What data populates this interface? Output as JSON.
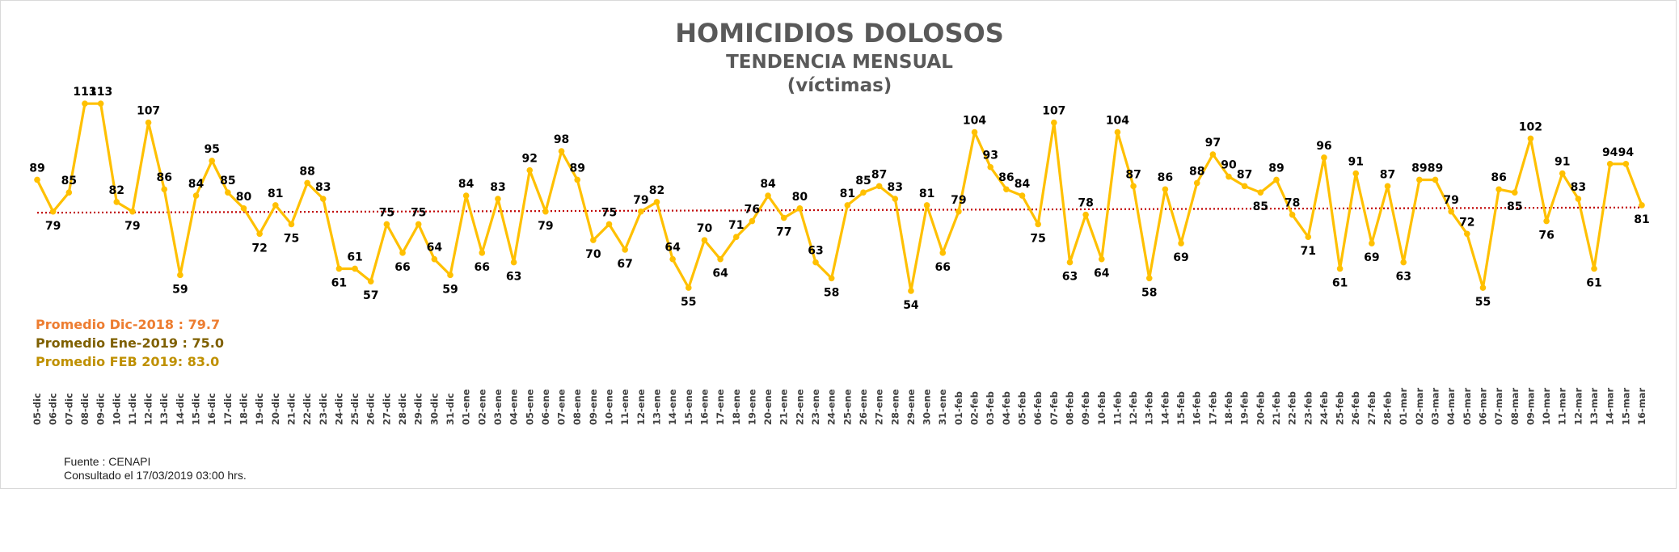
{
  "chart_data": {
    "type": "line",
    "title": "HOMICIDIOS DOLOSOS",
    "subtitle": "TENDENCIA MENSUAL",
    "unit_label": "(víctimas)",
    "categories": [
      "05-dic",
      "06-dic",
      "07-dic",
      "08-dic",
      "09-dic",
      "10-dic",
      "11-dic",
      "12-dic",
      "13-dic",
      "14-dic",
      "15-dic",
      "16-dic",
      "17-dic",
      "18-dic",
      "19-dic",
      "20-dic",
      "21-dic",
      "22-dic",
      "23-dic",
      "24-dic",
      "25-dic",
      "26-dic",
      "27-dic",
      "28-dic",
      "29-dic",
      "30-dic",
      "31-dic",
      "01-ene",
      "02-ene",
      "03-ene",
      "04-ene",
      "05-ene",
      "06-ene",
      "07-ene",
      "08-ene",
      "09-ene",
      "10-ene",
      "11-ene",
      "12-ene",
      "13-ene",
      "14-ene",
      "15-ene",
      "16-ene",
      "17-ene",
      "18-ene",
      "19-ene",
      "20-ene",
      "21-ene",
      "22-ene",
      "23-ene",
      "24-ene",
      "25-ene",
      "26-ene",
      "27-ene",
      "28-ene",
      "29-ene",
      "30-ene",
      "31-ene",
      "01-feb",
      "02-feb",
      "03-feb",
      "04-feb",
      "05-feb",
      "06-feb",
      "07-feb",
      "08-feb",
      "09-feb",
      "10-feb",
      "11-feb",
      "12-feb",
      "13-feb",
      "14-feb",
      "15-feb",
      "16-feb",
      "17-feb",
      "18-feb",
      "19-feb",
      "20-feb",
      "21-feb",
      "22-feb",
      "23-feb",
      "24-feb",
      "25-feb",
      "26-feb",
      "27-feb",
      "28-feb",
      "01-mar",
      "02-mar",
      "03-mar",
      "04-mar",
      "05-mar",
      "06-mar",
      "07-mar",
      "08-mar",
      "09-mar",
      "10-mar",
      "11-mar",
      "12-mar",
      "13-mar",
      "14-mar",
      "15-mar",
      "16-mar"
    ],
    "values": [
      89,
      79,
      85,
      113,
      113,
      82,
      79,
      107,
      86,
      59,
      84,
      95,
      85,
      80,
      72,
      81,
      75,
      88,
      83,
      61,
      61,
      57,
      75,
      66,
      75,
      64,
      59,
      84,
      66,
      83,
      63,
      92,
      79,
      98,
      89,
      70,
      75,
      67,
      79,
      82,
      64,
      55,
      70,
      64,
      71,
      76,
      84,
      77,
      80,
      63,
      58,
      81,
      85,
      87,
      83,
      54,
      81,
      66,
      79,
      104,
      93,
      86,
      84,
      75,
      107,
      63,
      78,
      64,
      104,
      87,
      58,
      86,
      69,
      88,
      97,
      90,
      87,
      85,
      89,
      78,
      71,
      96,
      61,
      91,
      69,
      87,
      63,
      89,
      89,
      79,
      72,
      55,
      86,
      85,
      102,
      76,
      91,
      83,
      61,
      94,
      94,
      81
    ],
    "data_labels": [
      89,
      79,
      85,
      113,
      113,
      82,
      79,
      107,
      86,
      59,
      84,
      95,
      85,
      80,
      72,
      81,
      75,
      88,
      83,
      61,
      61,
      57,
      75,
      66,
      75,
      64,
      59,
      84,
      66,
      83,
      63,
      92,
      79,
      98,
      89,
      70,
      75,
      67,
      79,
      82,
      64,
      55,
      70,
      64,
      71,
      76,
      84,
      77,
      80,
      63,
      58,
      81,
      85,
      87,
      83,
      54,
      81,
      66,
      79,
      104,
      93,
      86,
      84,
      75,
      107,
      63,
      78,
      64,
      104,
      87,
      58,
      86,
      69,
      88,
      97,
      90,
      87,
      85,
      89,
      78,
      71,
      96,
      61,
      91,
      69,
      87,
      63,
      89,
      89,
      79,
      72,
      55,
      86,
      85,
      102,
      76,
      91,
      83,
      61,
      94,
      94,
      81
    ],
    "reference_line": {
      "style": "dotted",
      "color": "#C00000"
    },
    "line_color": "#FFC000",
    "ylim": [
      40,
      125
    ],
    "grid": false,
    "legend": "none"
  },
  "averages": [
    {
      "text": "Promedio Dic-2018  : 79.7",
      "color": "#ED7D31"
    },
    {
      "text": "Promedio Ene-2019 : 75.0",
      "color": "#7F6000"
    },
    {
      "text": "Promedio FEB 2019:  83.0",
      "color": "#BF9000"
    }
  ],
  "source": {
    "line1": "Fuente : CENAPI",
    "line2": "Consultado el 17/03/2019  03:00 hrs."
  }
}
